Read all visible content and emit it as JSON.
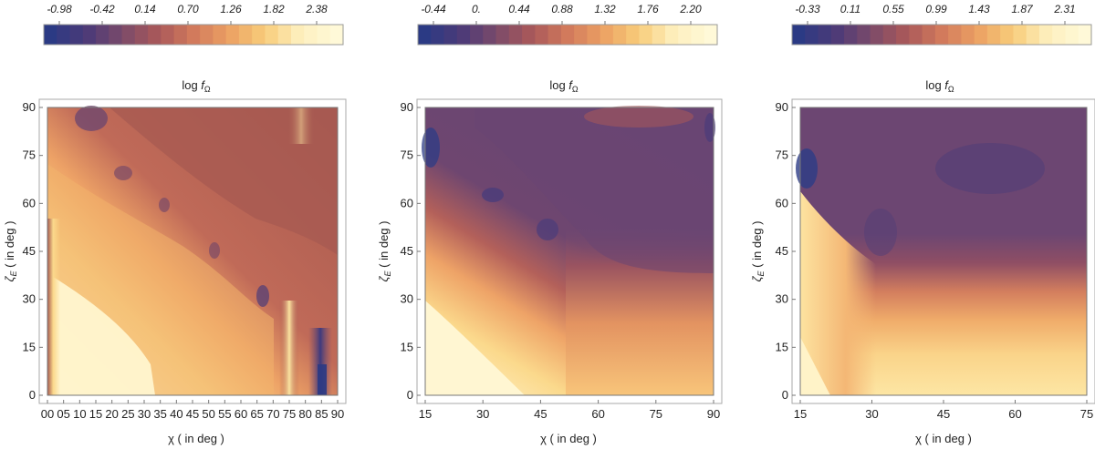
{
  "chart_data": [
    {
      "type": "heatmap",
      "title": "log f_Ω",
      "title_main": "log ",
      "title_var": "f",
      "title_sub": "Ω",
      "xlabel": "χ ( in deg )",
      "ylabel": "ζ_E ( in deg )",
      "ylabel_main": "ζ",
      "ylabel_sub": "E",
      "ylabel_rest": " ( in deg )",
      "x_ticks": [
        "00",
        "05",
        "10",
        "15",
        "20",
        "25",
        "30",
        "35",
        "40",
        "45",
        "50",
        "55",
        "60",
        "65",
        "70",
        "75",
        "80",
        "85",
        "90"
      ],
      "x_tick_values": [
        0,
        5,
        10,
        15,
        20,
        25,
        30,
        35,
        40,
        45,
        50,
        55,
        60,
        65,
        70,
        75,
        80,
        85,
        90
      ],
      "y_ticks": [
        "0",
        "15",
        "30",
        "45",
        "60",
        "75",
        "90"
      ],
      "y_tick_values": [
        0,
        15,
        30,
        45,
        60,
        75,
        90
      ],
      "xlim": [
        0,
        90
      ],
      "ylim": [
        0,
        90
      ],
      "colorbar_ticks": [
        "-0.98",
        "-0.42",
        "0.14",
        "0.70",
        "1.26",
        "1.82",
        "2.38"
      ],
      "colorbar_range": [
        -1.26,
        2.66
      ],
      "colorbar_levels": 23
    },
    {
      "type": "heatmap",
      "title": "log f_Ω",
      "title_main": "log ",
      "title_var": "f",
      "title_sub": "Ω",
      "xlabel": "χ ( in deg )",
      "ylabel": "ζ_E ( in deg )",
      "ylabel_main": "ζ",
      "ylabel_sub": "E",
      "ylabel_rest": " ( in deg )",
      "x_ticks": [
        "15",
        "30",
        "45",
        "60",
        "75",
        "90"
      ],
      "x_tick_values": [
        15,
        30,
        45,
        60,
        75,
        90
      ],
      "y_ticks": [
        "0",
        "15",
        "30",
        "45",
        "60",
        "75",
        "90"
      ],
      "y_tick_values": [
        0,
        15,
        30,
        45,
        60,
        75,
        90
      ],
      "xlim": [
        15,
        90
      ],
      "ylim": [
        0,
        90
      ],
      "colorbar_ticks": [
        "-0.44",
        "0.",
        "0.44",
        "0.88",
        "1.32",
        "1.76",
        "2.20"
      ],
      "colorbar_range": [
        -0.66,
        2.42
      ],
      "colorbar_levels": 23
    },
    {
      "type": "heatmap",
      "title": "log f_Ω",
      "title_main": "log ",
      "title_var": "f",
      "title_sub": "Ω",
      "xlabel": "χ ( in deg )",
      "ylabel": "ζ_E ( in deg )",
      "ylabel_main": "ζ",
      "ylabel_sub": "E",
      "ylabel_rest": " ( in deg )",
      "x_ticks": [
        "15",
        "30",
        "45",
        "60",
        "75"
      ],
      "x_tick_values": [
        15,
        30,
        45,
        60,
        75
      ],
      "y_ticks": [
        "0",
        "15",
        "30",
        "45",
        "60",
        "75",
        "90"
      ],
      "y_tick_values": [
        0,
        15,
        30,
        45,
        60,
        75,
        90
      ],
      "xlim": [
        15,
        75
      ],
      "ylim": [
        0,
        90
      ],
      "colorbar_ticks": [
        "-0.33",
        "0.11",
        "0.55",
        "0.99",
        "1.43",
        "1.87",
        "2.31"
      ],
      "colorbar_range": [
        -0.55,
        2.53
      ],
      "colorbar_levels": 23
    }
  ],
  "palette": [
    "#2b3a84",
    "#4b3a78",
    "#7a4a6a",
    "#a9585a",
    "#d27a5c",
    "#eca163",
    "#f8cd7a",
    "#fdf0bf",
    "#fff9d8"
  ]
}
